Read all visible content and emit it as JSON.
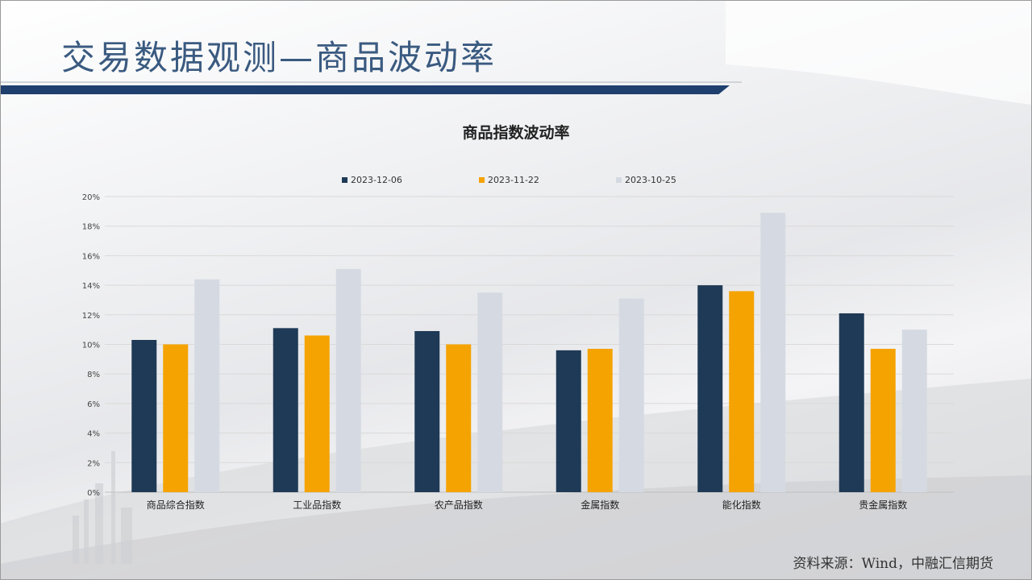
{
  "page": {
    "title": "交易数据观测—商品波动率",
    "source": "资料来源：Wind，中融汇信期货"
  },
  "colors": {
    "title": "#3a5a80",
    "bar_band": "#1f3f6e"
  },
  "chart_data": {
    "type": "bar",
    "title": "商品指数波动率",
    "xlabel": "",
    "ylabel": "",
    "categories": [
      "商品综合指数",
      "工业品指数",
      "农产品指数",
      "金属指数",
      "能化指数",
      "贵金属指数"
    ],
    "series": [
      {
        "name": "2023-12-06",
        "color": "#1f3a56",
        "values": [
          10.3,
          11.1,
          10.9,
          9.6,
          14.0,
          12.1
        ]
      },
      {
        "name": "2023-11-22",
        "color": "#f5a300",
        "values": [
          10.0,
          10.6,
          10.0,
          9.7,
          13.6,
          9.7
        ]
      },
      {
        "name": "2023-10-25",
        "color": "#d5dae2",
        "values": [
          14.4,
          15.1,
          13.5,
          13.1,
          18.9,
          11.0
        ]
      }
    ],
    "ylim": [
      0,
      20
    ],
    "yticks": [
      "0%",
      "2%",
      "4%",
      "6%",
      "8%",
      "10%",
      "12%",
      "14%",
      "16%",
      "18%",
      "20%"
    ],
    "grid": true,
    "legend": "top"
  }
}
